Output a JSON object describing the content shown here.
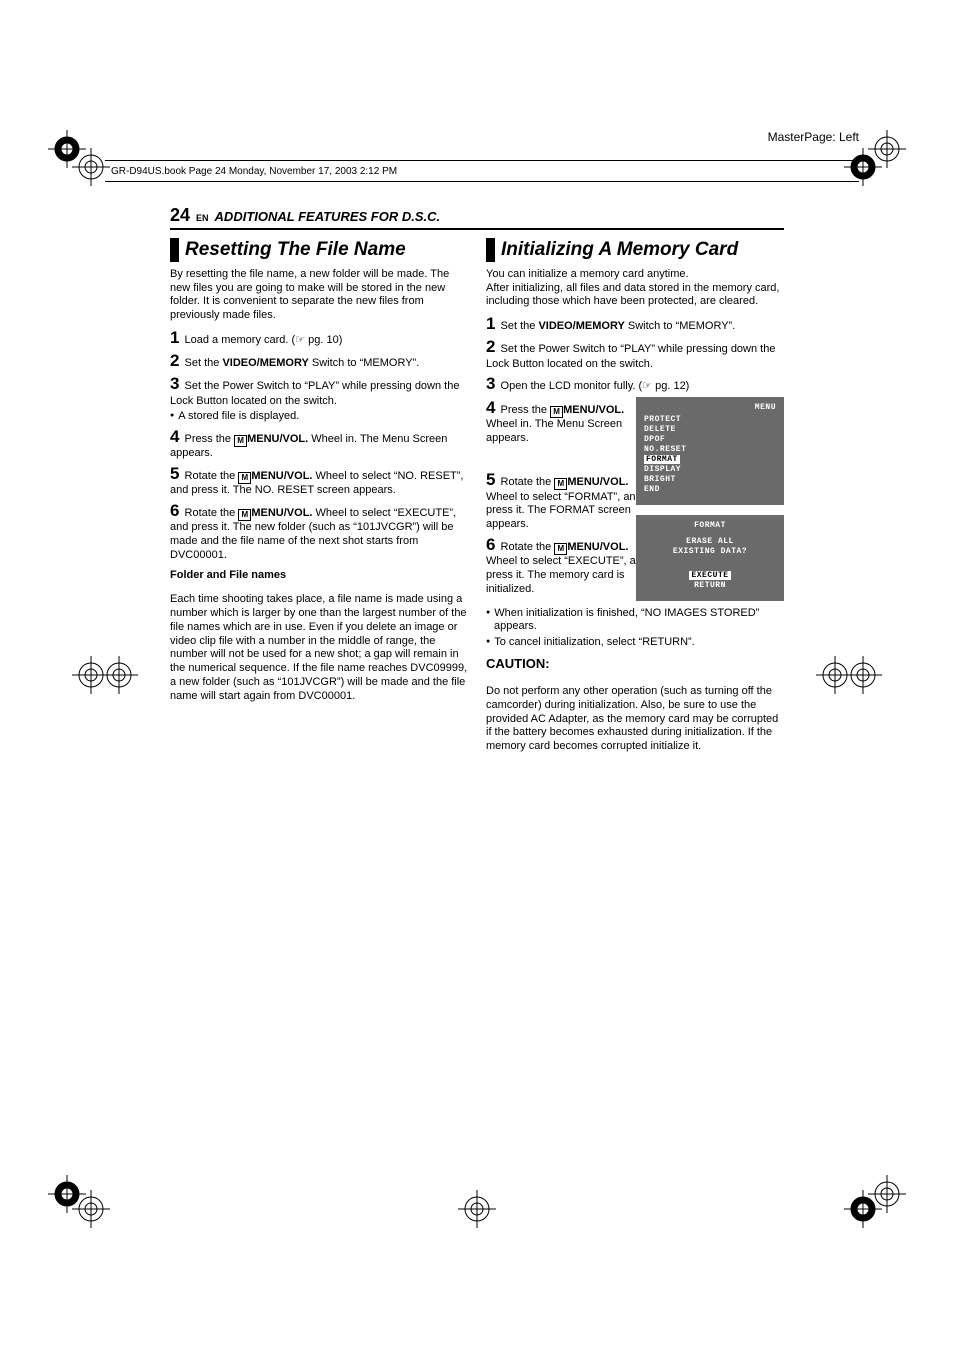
{
  "masterpage": "MasterPage: Left",
  "headerbar": "GR-D94US.book  Page 24  Monday, November 17, 2003  2:12 PM",
  "runhead": {
    "page": "24",
    "lang": "EN",
    "title": "ADDITIONAL FEATURES FOR D.S.C."
  },
  "left": {
    "h2": "Resetting The File Name",
    "intro": "By resetting the file name, a new folder will be made. The new files you are going to make will be stored in the new folder. It is convenient to separate the new files from previously made files.",
    "s1a": "Load a memory card. (",
    "s1b": " pg. 10)",
    "s2a": "Set the ",
    "s2b": "VIDEO/MEMORY",
    "s2c": " Switch to “MEMORY”.",
    "s3": "Set the Power Switch to “PLAY” while pressing down the Lock Button located on the switch.",
    "s3bul": "A stored file is displayed.",
    "s4a": "Press the ",
    "s4b": "MENU/VOL.",
    "s4c": " Wheel in. The Menu Screen appears.",
    "s5a": "Rotate the ",
    "s5b": "MENU/VOL.",
    "s5c": " Wheel to select “NO. RESET”, and press it. The NO. RESET screen appears.",
    "s6a": "Rotate the ",
    "s6b": "MENU/VOL.",
    "s6c": " Wheel to select “EXECUTE”, and press it. The new folder (such as “101JVCGR”) will be made and the file name of the next shot starts from DVC00001.",
    "fnhead": "Folder and File names",
    "fnbody": "Each time shooting takes place, a file name is made using a number which is larger by one than the largest number of the file names which are in use. Even if you delete an image or video clip file with a number in the middle of range, the number will not be used for a new shot; a gap will remain in the numerical sequence. If the file name reaches DVC09999, a new folder (such as “101JVCGR”) will be made and the file name will start again from DVC00001."
  },
  "right": {
    "h2": "Initializing A Memory Card",
    "intro": "You can initialize a memory card anytime.\nAfter initializing, all files and data stored in the memory card, including those which have been protected, are cleared.",
    "s1a": "Set the ",
    "s1b": "VIDEO/MEMORY",
    "s1c": " Switch to “MEMORY”.",
    "s2": "Set the Power Switch to “PLAY” while pressing down the Lock Button located on the switch.",
    "s3a": "Open the LCD monitor fully. (",
    "s3b": " pg. 12)",
    "s4a": "Press the ",
    "s4b": "MENU/VOL.",
    "s4c": "Wheel in. The Menu Screen appears.",
    "s5a": "Rotate the ",
    "s5b": "MENU/VOL.",
    "s5c": "Wheel to select “FORMAT”, and press it. The FORMAT screen appears.",
    "s6a": "Rotate the ",
    "s6b": "MENU/VOL.",
    "s6c": "Wheel to select “EXECUTE”, and press it. The memory card is initialized.",
    "bul1": "When initialization is finished, “NO IMAGES STORED” appears.",
    "bul2": "To cancel initialization, select “RETURN”.",
    "caution_h": "CAUTION:",
    "caution_b": "Do not perform any other operation (such as turning off the camcorder) during initialization. Also, be sure to use the provided AC Adapter, as the memory card may be corrupted if the battery becomes exhausted during initialization. If the memory card becomes corrupted initialize it."
  },
  "lcd_menu": {
    "tag": "MENU",
    "rows": [
      "PROTECT",
      "DELETE",
      "DPOF",
      "NO.RESET"
    ],
    "hl": "FORMAT",
    "rows2": [
      "DISPLAY",
      "BRIGHT",
      "END"
    ]
  },
  "lcd_fmt": {
    "tag": "FORMAT",
    "l1": "ERASE ALL",
    "l2": "EXISTING DATA?",
    "exec": "EXECUTE",
    "ret": "RETURN"
  },
  "icons": {
    "M": "M",
    "ptr": "☞"
  }
}
